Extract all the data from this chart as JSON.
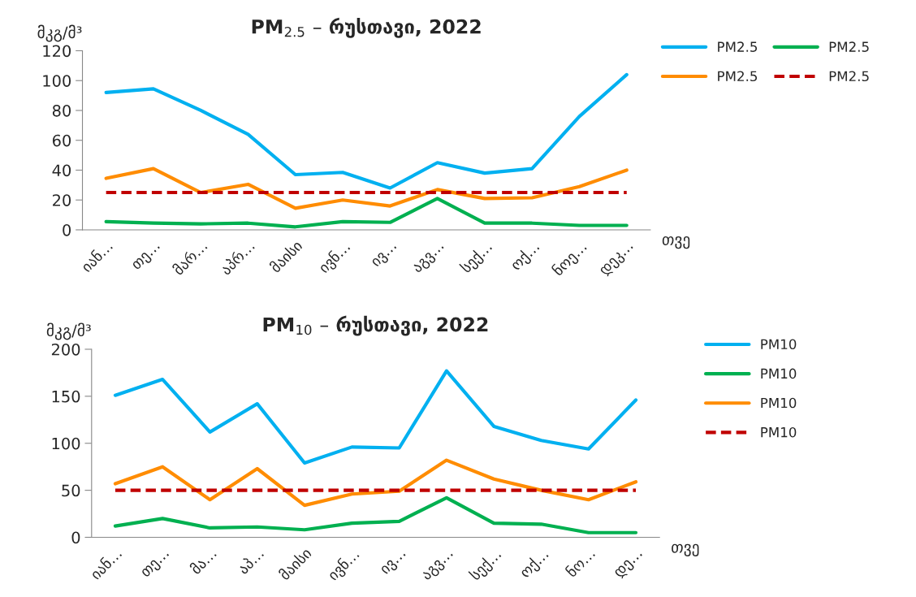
{
  "chart_data": [
    {
      "type": "line",
      "title": "PM$_{2.5}$ – რუსთავი, 2022",
      "ylabel": "მკგ/მ³",
      "xlabel": "თვე",
      "categories": [
        "იან…",
        "თე…",
        "მარ…",
        "აპრ…",
        "მაისი",
        "ივნ…",
        "ივ…",
        "აგვ…",
        "სექ…",
        "ოქ…",
        "ნოე…",
        "დეკ…"
      ],
      "ylim": [
        0,
        120
      ],
      "yticks": [
        0,
        20,
        40,
        60,
        80,
        100,
        120
      ],
      "grid": false,
      "legend": "top right",
      "series": [
        {
          "name": "PM2.5",
          "color": "#00b0f0",
          "values": [
            92,
            94.5,
            80,
            64,
            37,
            38.5,
            28,
            45,
            38,
            41,
            76,
            104
          ]
        },
        {
          "name": "PM2.5",
          "color": "#00b050",
          "values": [
            5.5,
            4.5,
            4,
            4.5,
            2,
            5.5,
            5,
            21,
            4.5,
            4.5,
            3,
            3
          ]
        },
        {
          "name": "PM2.5",
          "color": "#ff8c00",
          "values": [
            34.5,
            41,
            25,
            30.5,
            14.5,
            20,
            16,
            27,
            21,
            21.5,
            29,
            40
          ]
        },
        {
          "name": "PM2.5",
          "color": "#c00000",
          "line_style": "dashed",
          "values": [
            25,
            25,
            25,
            25,
            25,
            25,
            25,
            25,
            25,
            25,
            25,
            25
          ]
        }
      ]
    },
    {
      "type": "line",
      "title": "PM$_{10}$ – რუსთავი, 2022",
      "ylabel": "მკგ/მ³",
      "xlabel": "თვე",
      "categories": [
        "იან…",
        "თე…",
        "მა…",
        "აპ…",
        "მაისი",
        "ივნ…",
        "ივ…",
        "აგვ…",
        "სექ…",
        "ოქ…",
        "ნო…",
        "დე…"
      ],
      "ylim": [
        0,
        200
      ],
      "yticks": [
        0,
        50,
        100,
        150,
        200
      ],
      "grid": false,
      "legend": "top right",
      "series": [
        {
          "name": "PM10",
          "color": "#00b0f0",
          "values": [
            151,
            168,
            112,
            142,
            79,
            96,
            95,
            177,
            118,
            103,
            94,
            146
          ]
        },
        {
          "name": "PM10",
          "color": "#00b050",
          "values": [
            12,
            20,
            10,
            11,
            8,
            15,
            17,
            42,
            15,
            14,
            5,
            5
          ]
        },
        {
          "name": "PM10",
          "color": "#ff8c00",
          "values": [
            57,
            75,
            40,
            73,
            34,
            46,
            49,
            82,
            62,
            50,
            40,
            59
          ]
        },
        {
          "name": "PM10",
          "color": "#c00000",
          "line_style": "dashed",
          "values": [
            50,
            50,
            50,
            50,
            50,
            50,
            50,
            50,
            50,
            50,
            50,
            50
          ]
        }
      ]
    }
  ]
}
